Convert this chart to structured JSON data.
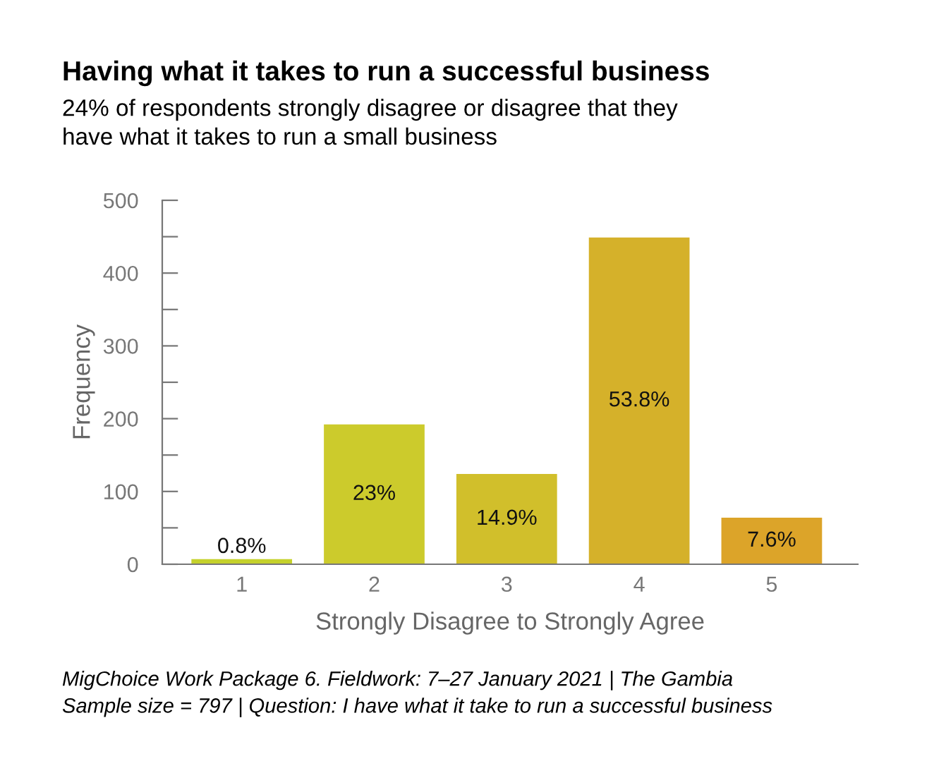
{
  "chart_data": {
    "type": "bar",
    "title": "Having what it takes to run a successful business",
    "subtitle": "24% of respondents strongly disagree or disagree that they\nhave what it takes to run a small business",
    "xlabel": "Strongly Disagree to Strongly Agree",
    "ylabel": "Frequency",
    "categories": [
      "1",
      "2",
      "3",
      "4",
      "5"
    ],
    "values": [
      7,
      192,
      124,
      449,
      64
    ],
    "colors": [
      "#c5d12c",
      "#cccb2c",
      "#d1bf2b",
      "#d5b12a",
      "#dca429"
    ],
    "ylim": [
      0,
      500
    ],
    "yticks": [
      0,
      {
        "value": 50,
        "label": null
      },
      100,
      {
        "value": 150,
        "label": null
      },
      200,
      {
        "value": 250,
        "label": null
      },
      300,
      {
        "value": 350,
        "label": null
      },
      400,
      {
        "value": 450,
        "label": null
      },
      500
    ],
    "grid": false,
    "legend": false,
    "annotations": [
      "0.8%",
      "23%",
      "14.9%",
      "53.8%",
      "7.6%",
      "MigChoice Work Package 6. Fieldwork: 7–27 January 2021 | The Gambia\nSample size = 797 | Question: I have what it take to run a successful business"
    ]
  }
}
